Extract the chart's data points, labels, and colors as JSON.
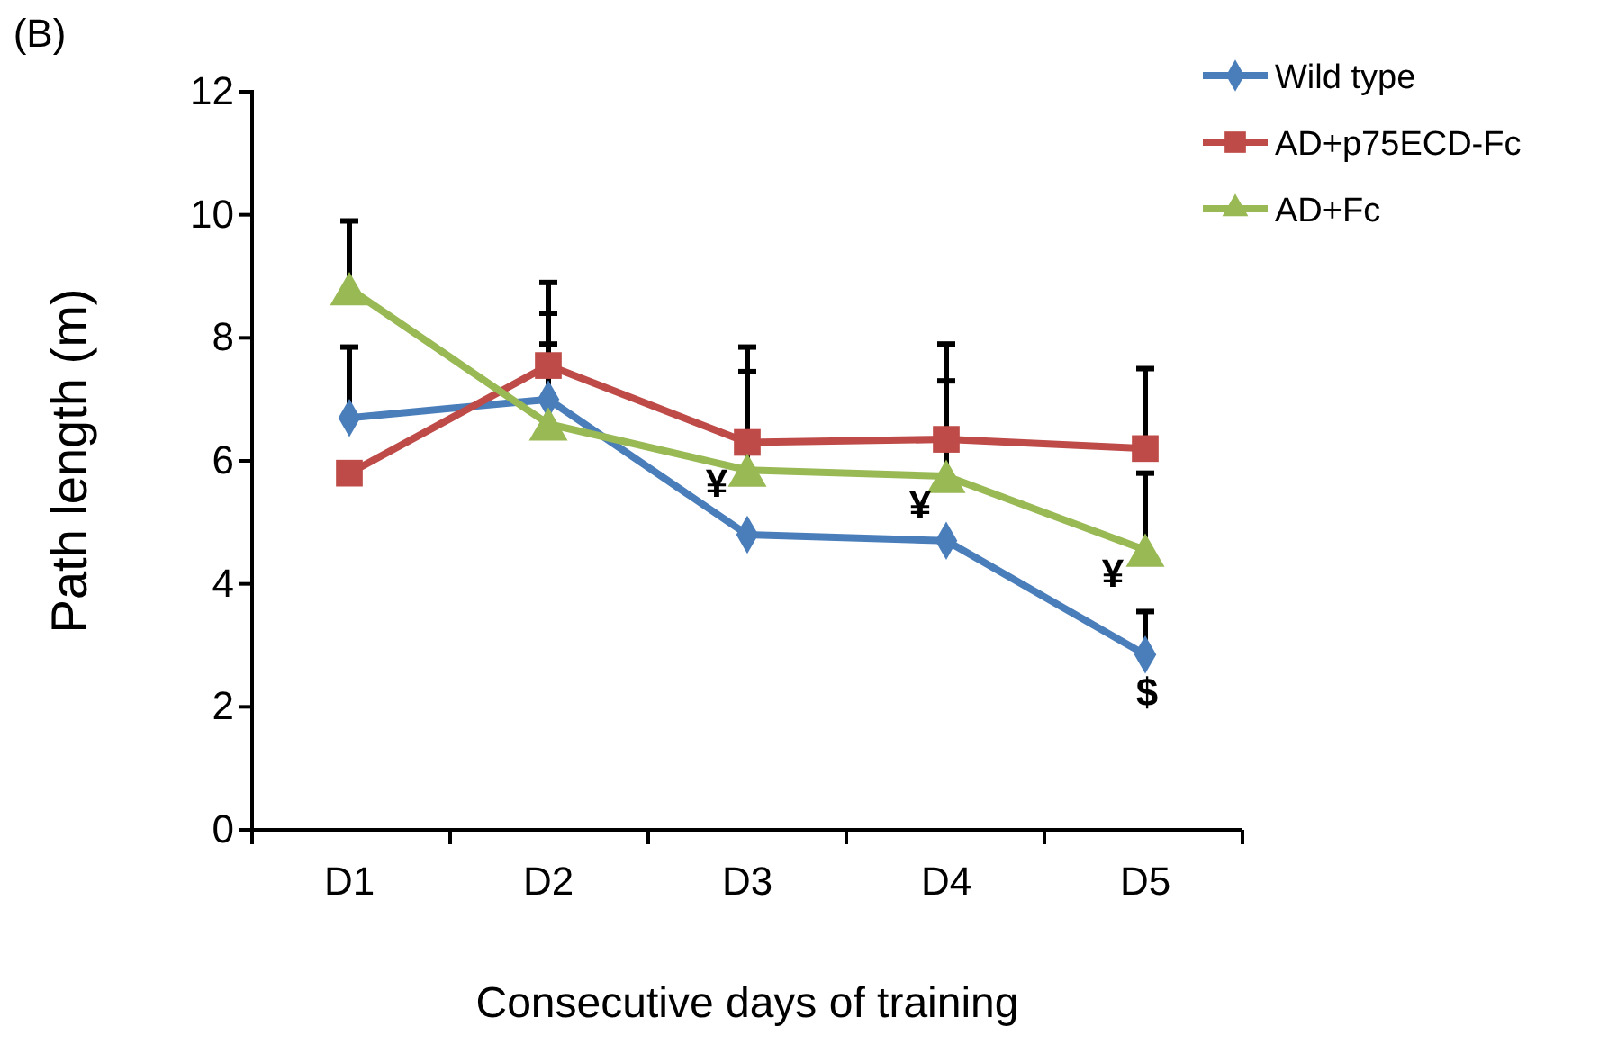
{
  "chart_data": {
    "type": "line",
    "xlabel": "Consecutive days of training",
    "ylabel": "Path length (m)",
    "categories": [
      "D1",
      "D2",
      "D3",
      "D4",
      "D5"
    ],
    "ylim": [
      0,
      12
    ],
    "yticks": [
      0,
      2,
      4,
      6,
      8,
      10,
      12
    ],
    "grid": false,
    "legend": "top right",
    "line_style": "solid",
    "series": [
      {
        "name": "Wild type",
        "color": "#4a7ebb",
        "marker": "diamond",
        "values": [
          6.7,
          7.0,
          4.8,
          4.7,
          2.85
        ],
        "errors": [
          [
            6.7,
            7.85
          ],
          [
            7.0,
            8.4
          ],
          null,
          null,
          [
            2.85,
            3.55
          ]
        ]
      },
      {
        "name": "AD+p75ECD-Fc",
        "color": "#be4b48",
        "marker": "square",
        "values": [
          5.8,
          7.55,
          6.3,
          6.35,
          6.2
        ],
        "errors": [
          [
            5.8,
            5.8
          ],
          [
            7.55,
            8.9
          ],
          [
            6.3,
            7.85
          ],
          [
            6.35,
            7.9
          ],
          [
            6.2,
            7.5
          ]
        ]
      },
      {
        "name": "AD+Fc",
        "color": "#98b954",
        "marker": "triangle",
        "values": [
          8.8,
          6.6,
          5.85,
          5.75,
          4.55
        ],
        "errors": [
          [
            8.8,
            9.9
          ],
          [
            6.6,
            7.9
          ],
          [
            5.85,
            7.45
          ],
          [
            5.75,
            7.3
          ],
          [
            4.55,
            5.8
          ]
        ]
      }
    ],
    "annotations": [
      "(B)",
      "¥",
      "¥",
      "¥",
      "$"
    ]
  }
}
